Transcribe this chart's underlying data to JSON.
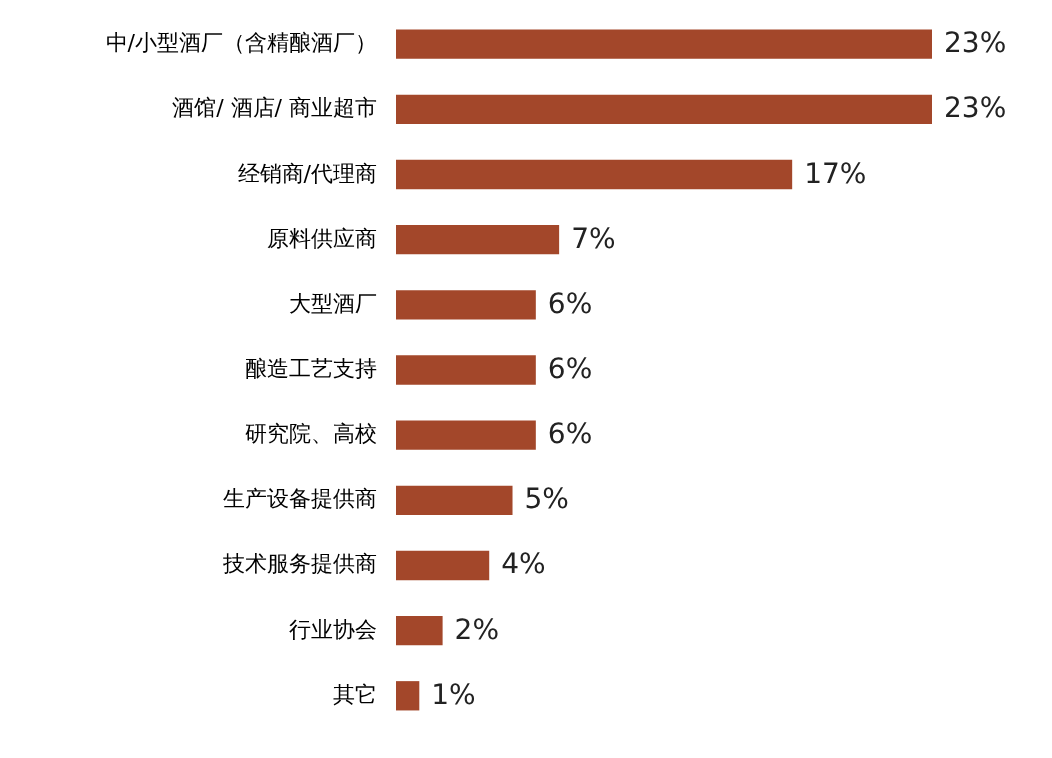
{
  "chart_data": {
    "type": "bar",
    "orientation": "horizontal",
    "categories": [
      "中/小型酒厂（含精酿酒厂）",
      "酒馆/ 酒店/ 商业超市",
      "经销商/代理商",
      "原料供应商",
      "大型酒厂",
      "酿造工艺支持",
      "研究院、高校",
      "生产设备提供商",
      "技术服务提供商",
      "行业协会",
      "其它"
    ],
    "values": [
      23,
      23,
      17,
      7,
      6,
      6,
      6,
      5,
      4,
      2,
      1
    ],
    "value_labels": [
      "23%",
      "23%",
      "17%",
      "7%",
      "6%",
      "6%",
      "6%",
      "5%",
      "4%",
      "2%",
      "1%"
    ],
    "color": "#a3472a"
  }
}
